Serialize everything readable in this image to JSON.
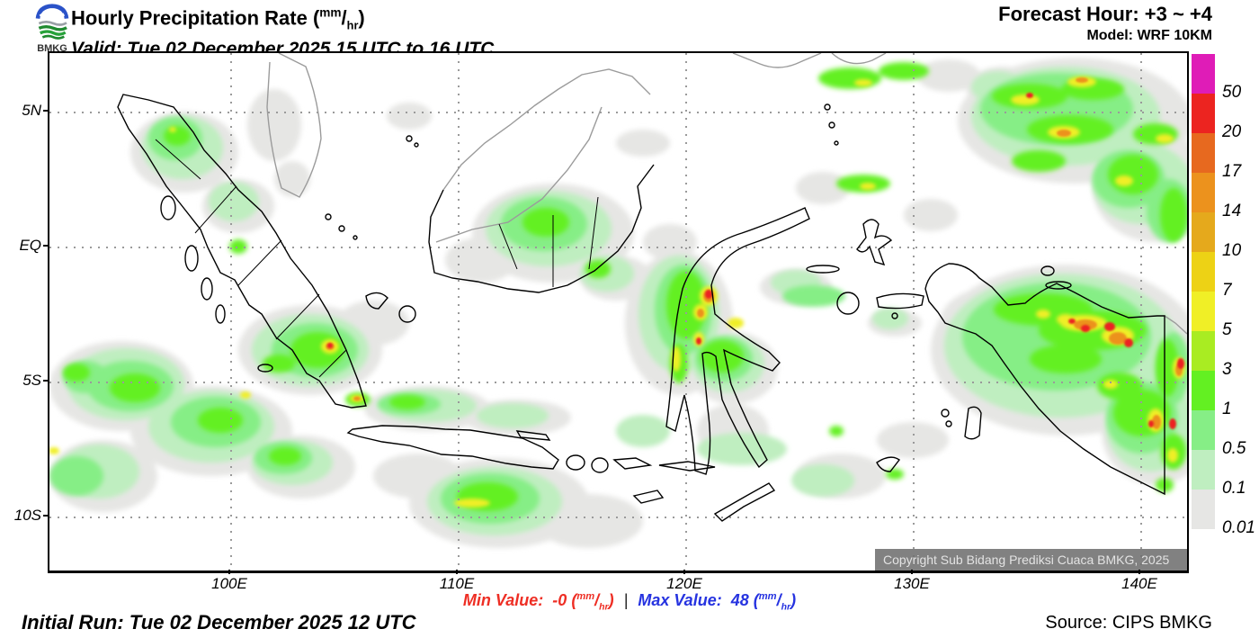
{
  "header": {
    "logo": "BMKG",
    "title": "Hourly Precipitation Rate",
    "unit_sup": "mm",
    "unit_sub": "hr",
    "valid": "Valid: Tue 02 December 2025 15 UTC to 16 UTC",
    "forecast_hour": "Forecast Hour: +3 ~ +4",
    "model": "Model: WRF 10KM"
  },
  "map": {
    "lat_ticks": [
      "5N",
      "EQ",
      "5S",
      "10S"
    ],
    "lon_ticks": [
      "100E",
      "110E",
      "120E",
      "130E",
      "140E"
    ],
    "copyright": "Copyright Sub Bidang Prediksi Cuaca BMKG, 2025"
  },
  "colorbar": {
    "levels": [
      {
        "label": "50",
        "color": "#df1cb7"
      },
      {
        "label": "20",
        "color": "#ec2420"
      },
      {
        "label": "17",
        "color": "#e7691f"
      },
      {
        "label": "14",
        "color": "#ec921d"
      },
      {
        "label": "10",
        "color": "#e5a91c"
      },
      {
        "label": "7",
        "color": "#edd215"
      },
      {
        "label": "5",
        "color": "#f0ef26"
      },
      {
        "label": "3",
        "color": "#a9ec22"
      },
      {
        "label": "1",
        "color": "#63f022"
      },
      {
        "label": "0.5",
        "color": "#86ee86"
      },
      {
        "label": "0.1",
        "color": "#bfeec0"
      },
      {
        "label": "0.01",
        "color": "#e6e6e4"
      }
    ]
  },
  "footer": {
    "min_label": "Min Value:",
    "min_value": "-0",
    "separator": "|",
    "max_label": "Max Value:",
    "max_value": "48",
    "unit_sup": "mm",
    "unit_sub": "hr",
    "initial_run": "Initial Run: Tue 02 December 2025 12 UTC",
    "source": "Source: CIPS BMKG"
  },
  "chart_data": {
    "type": "heatmap",
    "title": "Hourly Precipitation Rate (mm/hr)",
    "valid_period": "Tue 02 December 2025 15 UTC to 16 UTC",
    "forecast_hour": "+3 ~ +4",
    "model": "WRF 10KM",
    "initial_run": "Tue 02 December 2025 12 UTC",
    "region": "Indonesia",
    "x_ticks": [
      "100E",
      "110E",
      "120E",
      "130E",
      "140E"
    ],
    "y_ticks": [
      "5N",
      "EQ",
      "5S",
      "10S"
    ],
    "colorbar_levels_mm_per_hr": [
      0.01,
      0.1,
      0.5,
      1,
      3,
      5,
      7,
      10,
      14,
      17,
      20,
      50
    ],
    "colorbar_colors": [
      "#e6e6e4",
      "#bfeec0",
      "#86ee86",
      "#63f022",
      "#a9ec22",
      "#f0ef26",
      "#edd215",
      "#e5a91c",
      "#ec921d",
      "#e7691f",
      "#ec2420",
      "#df1cb7"
    ],
    "min_value": "-0",
    "max_value": "48",
    "unit": "mm/hr",
    "legend_position": "right",
    "grid": "dotted"
  }
}
